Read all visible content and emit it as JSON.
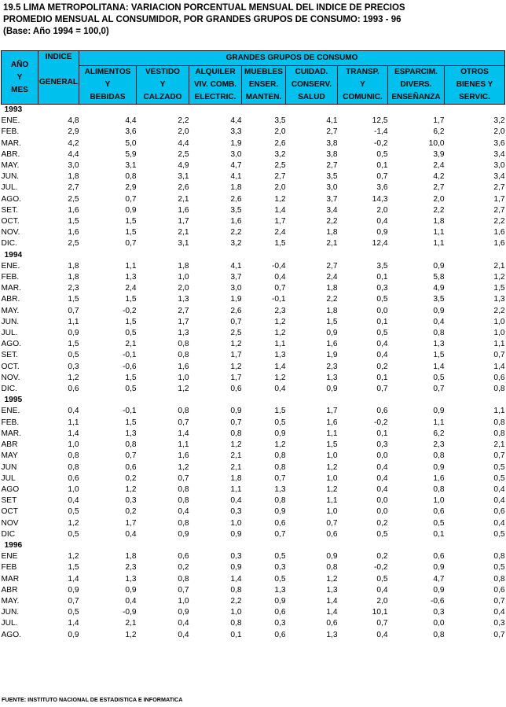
{
  "title": {
    "line1": "19.5  LIMA METROPOLITANA: VARIACION PORCENTUAL MENSUAL DEL INDICE DE PRECIOS",
    "line2": "PROMEDIO MENSUAL AL CONSUMIDOR, POR GRANDES GRUPOS DE CONSUMO: 1993 - 96",
    "line3": "(Base: Año 1994 = 100,0)"
  },
  "header": {
    "col_month": [
      "AÑO",
      "Y",
      "MES"
    ],
    "col_index": [
      "INDICE",
      "",
      "GENERAL"
    ],
    "group_title": "GRANDES GRUPOS DE CONSUMO",
    "groups": [
      [
        "ALIMENTOS",
        "Y",
        "BEBIDAS"
      ],
      [
        "VESTIDO",
        "Y",
        "CALZADO"
      ],
      [
        "ALQUILER",
        "VIV. COMB.",
        "ELECTRIC."
      ],
      [
        "MUEBLES",
        "ENSER.",
        "MANTEN."
      ],
      [
        "CUIDAD.",
        "CONSERV.",
        "SALUD"
      ],
      [
        "TRANSP.",
        "Y",
        "COMUNIC."
      ],
      [
        "ESPARCIM.",
        "DIVERS.",
        "ENSEÑANZA"
      ],
      [
        "OTROS",
        "BIENES Y",
        "SERVIC."
      ]
    ]
  },
  "years": [
    {
      "year": "1993",
      "rows": [
        [
          "ENE.",
          "4,8",
          "4,4",
          "2,2",
          "4,4",
          "3,5",
          "4,1",
          "12,5",
          "1,7",
          "3,2"
        ],
        [
          "FEB.",
          "2,9",
          "3,6",
          "2,0",
          "3,3",
          "2,0",
          "2,7",
          "-1,4",
          "6,2",
          "2,0"
        ],
        [
          "MAR.",
          "4,2",
          "5,0",
          "4,4",
          "1,9",
          "2,6",
          "3,8",
          "-0,2",
          "10,0",
          "3,6"
        ],
        [
          "ABR.",
          "4,4",
          "5,9",
          "2,5",
          "3,0",
          "3,2",
          "3,8",
          "0,5",
          "3,9",
          "3,4"
        ],
        [
          "MAY.",
          "3,0",
          "3,1",
          "4,9",
          "4,7",
          "2,5",
          "2,7",
          "0,1",
          "2,4",
          "3,0"
        ],
        [
          "JUN.",
          "1,8",
          "0,8",
          "3,1",
          "4,1",
          "2,7",
          "3,5",
          "0,7",
          "4,2",
          "3,4"
        ],
        [
          "JUL.",
          "2,7",
          "2,9",
          "2,6",
          "1,8",
          "2,0",
          "3,0",
          "3,6",
          "2,7",
          "2,7"
        ],
        [
          "AGO.",
          "2,5",
          "0,7",
          "2,1",
          "2,6",
          "1,2",
          "3,7",
          "14,3",
          "2,0",
          "1,7"
        ],
        [
          "SET.",
          "1,6",
          "0,9",
          "1,6",
          "3,5",
          "1,4",
          "3,4",
          "2,0",
          "2,2",
          "2,7"
        ],
        [
          "OCT.",
          "1,5",
          "1,5",
          "1,7",
          "1,6",
          "1,7",
          "2,2",
          "0,4",
          "1,8",
          "2,2"
        ],
        [
          "NOV.",
          "1,6",
          "1,5",
          "2,1",
          "2,2",
          "2,4",
          "1,8",
          "0,9",
          "1,1",
          "1,6"
        ],
        [
          "DIC.",
          "2,5",
          "0,7",
          "3,1",
          "3,2",
          "1,5",
          "2,1",
          "12,4",
          "1,1",
          "1,6"
        ]
      ]
    },
    {
      "year": "1994",
      "rows": [
        [
          "ENE.",
          "1,8",
          "1,1",
          "1,8",
          "4,1",
          "-0,4",
          "2,7",
          "3,5",
          "0,9",
          "2,1"
        ],
        [
          "FEB.",
          "1,8",
          "1,3",
          "1,0",
          "3,7",
          "0,4",
          "2,4",
          "0,1",
          "5,8",
          "1,2"
        ],
        [
          "MAR.",
          "2,3",
          "2,4",
          "2,0",
          "3,0",
          "0,7",
          "1,8",
          "0,3",
          "4,9",
          "1,5"
        ],
        [
          "ABR.",
          "1,5",
          "1,5",
          "1,3",
          "1,9",
          "-0,1",
          "2,2",
          "0,5",
          "3,5",
          "1,3"
        ],
        [
          "MAY.",
          "0,7",
          "-0,2",
          "2,7",
          "2,6",
          "2,3",
          "1,8",
          "0,0",
          "0,9",
          "2,2"
        ],
        [
          "JUN.",
          "1,1",
          "1,5",
          "1,7",
          "0,7",
          "1,2",
          "1,5",
          "0,1",
          "0,4",
          "1,0"
        ],
        [
          "JUL.",
          "0,9",
          "0,5",
          "1,3",
          "2,5",
          "1,2",
          "0,9",
          "0,5",
          "0,8",
          "1,0"
        ],
        [
          "AGO.",
          "1,5",
          "2,1",
          "0,8",
          "1,2",
          "1,1",
          "1,6",
          "0,4",
          "1,3",
          "1,1"
        ],
        [
          "SET.",
          "0,5",
          "-0,1",
          "0,8",
          "1,7",
          "1,3",
          "1,9",
          "0,4",
          "1,5",
          "0,7"
        ],
        [
          "OCT.",
          "0,3",
          "-0,6",
          "1,6",
          "1,2",
          "1,4",
          "2,3",
          "0,2",
          "1,4",
          "1,4"
        ],
        [
          "NOV.",
          "1,2",
          "1,5",
          "1,0",
          "1,7",
          "1,2",
          "1,3",
          "0,1",
          "0,5",
          "0,6"
        ],
        [
          "DIC.",
          "0,6",
          "0,5",
          "1,2",
          "0,6",
          "0,4",
          "0,9",
          "0,7",
          "0,7",
          "0,8"
        ]
      ]
    },
    {
      "year": "1995",
      "rows": [
        [
          "ENE.",
          "0,4",
          "-0,1",
          "0,8",
          "0,9",
          "1,5",
          "1,7",
          "0,6",
          "0,9",
          "1,1"
        ],
        [
          "FEB.",
          "1,1",
          "1,5",
          "0,7",
          "0,7",
          "0,5",
          "1,6",
          "-0,2",
          "1,1",
          "0,8"
        ],
        [
          "MAR.",
          "1,4",
          "1,3",
          "1,4",
          "0,8",
          "0,9",
          "1,1",
          "0,1",
          "6,2",
          "0,8"
        ],
        [
          "ABR",
          "1,0",
          "0,8",
          "1,1",
          "1,2",
          "1,2",
          "1,5",
          "0,3",
          "2,3",
          "2,1"
        ],
        [
          "MAY",
          "0,8",
          "0,7",
          "1,6",
          "2,1",
          "0,8",
          "1,0",
          "0,0",
          "0,8",
          "0,7"
        ],
        [
          "JUN",
          "0,8",
          "0,6",
          "1,2",
          "2,1",
          "0,8",
          "1,2",
          "0,4",
          "0,9",
          "0,5"
        ],
        [
          "JUL",
          "0,6",
          "0,2",
          "0,7",
          "1,8",
          "0,7",
          "1,0",
          "0,4",
          "1,6",
          "0,5"
        ],
        [
          "AGO",
          "1,0",
          "1,2",
          "0,8",
          "1,1",
          "1,3",
          "1,2",
          "0,4",
          "0,8",
          "0,4"
        ],
        [
          "SET",
          "0,4",
          "0,3",
          "0,8",
          "0,4",
          "0,8",
          "1,1",
          "0,0",
          "1,0",
          "0,4"
        ],
        [
          "OCT",
          "0,5",
          "0,2",
          "0,4",
          "0,3",
          "0,9",
          "1,0",
          "0,0",
          "0,6",
          "0,6"
        ],
        [
          "NOV",
          "1,2",
          "1,7",
          "0,8",
          "1,0",
          "0,6",
          "0,7",
          "0,2",
          "0,5",
          "0,4"
        ],
        [
          "DIC",
          "0,5",
          "0,4",
          "0,9",
          "0,9",
          "0,7",
          "0,6",
          "0,5",
          "0,1",
          "0,5"
        ]
      ]
    },
    {
      "year": "1996",
      "rows": [
        [
          "ENE",
          "1,2",
          "1,8",
          "0,6",
          "0,3",
          "0,5",
          "0,9",
          "0,2",
          "0,6",
          "0,8"
        ],
        [
          "FEB",
          "1,5",
          "2,3",
          "0,2",
          "0,9",
          "0,3",
          "0,8",
          "-0,2",
          "0,9",
          "0,5"
        ],
        [
          "MAR",
          "1,4",
          "1,3",
          "0,8",
          "1,4",
          "0,5",
          "1,2",
          "0,5",
          "4,7",
          "0,8"
        ],
        [
          "ABR",
          "0,9",
          "0,9",
          "0,7",
          "0,8",
          "1,3",
          "1,3",
          "0,4",
          "0,9",
          "0,6"
        ],
        [
          "MAY.",
          "0,7",
          "0,4",
          "1,0",
          "2,2",
          "0,9",
          "1,4",
          "2,0",
          "-0,6",
          "0,7"
        ],
        [
          "JUN.",
          "0,5",
          "-0,9",
          "0,9",
          "1,0",
          "0,6",
          "1,4",
          "10,1",
          "0,3",
          "0,4"
        ],
        [
          "JUL.",
          "1,4",
          "2,1",
          "0,4",
          "0,8",
          "0,3",
          "0,6",
          "0,7",
          "0,0",
          "0,3"
        ],
        [
          "AGO.",
          "0,9",
          "1,2",
          "0,4",
          "0,1",
          "0,6",
          "1,3",
          "0,4",
          "0,8",
          "0,7"
        ]
      ]
    }
  ],
  "footer": "FUENTE: INSTITUTO NACIONAL DE ESTADISTICA E INFORMATICA"
}
